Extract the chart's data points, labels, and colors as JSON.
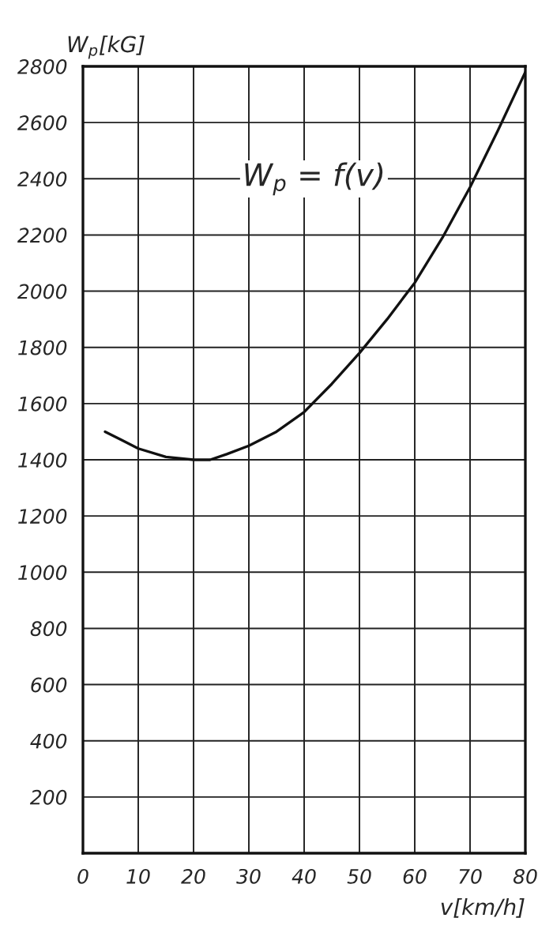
{
  "chart_data": {
    "type": "line",
    "xlabel": "v[km/h]",
    "ylabel": "W$_{p}$[kG]",
    "annotations": [
      "W$_{p}$ = f(v)"
    ],
    "series": [
      {
        "color": "#111111",
        "x": [
          4,
          7,
          10,
          15,
          20,
          23,
          26,
          30,
          35,
          40,
          45,
          50,
          55,
          60,
          65,
          70,
          75,
          80
        ],
        "values": [
          1500,
          1470,
          1440,
          1410,
          1400,
          1400,
          1420,
          1450,
          1500,
          1570,
          1670,
          1780,
          1900,
          2030,
          2190,
          2370,
          2570,
          2780
        ]
      }
    ],
    "xlim": [
      0,
      80
    ],
    "ylim": [
      0,
      2800
    ],
    "xticks": [
      0,
      10,
      20,
      30,
      40,
      50,
      60,
      70,
      80
    ],
    "yticks": [
      {
        "value": 0,
        "label": null
      },
      200,
      400,
      600,
      800,
      1000,
      1200,
      1400,
      1600,
      1800,
      2000,
      2200,
      2400,
      2600,
      2800
    ],
    "grid": true,
    "marker": "none",
    "line_style": "solid"
  }
}
